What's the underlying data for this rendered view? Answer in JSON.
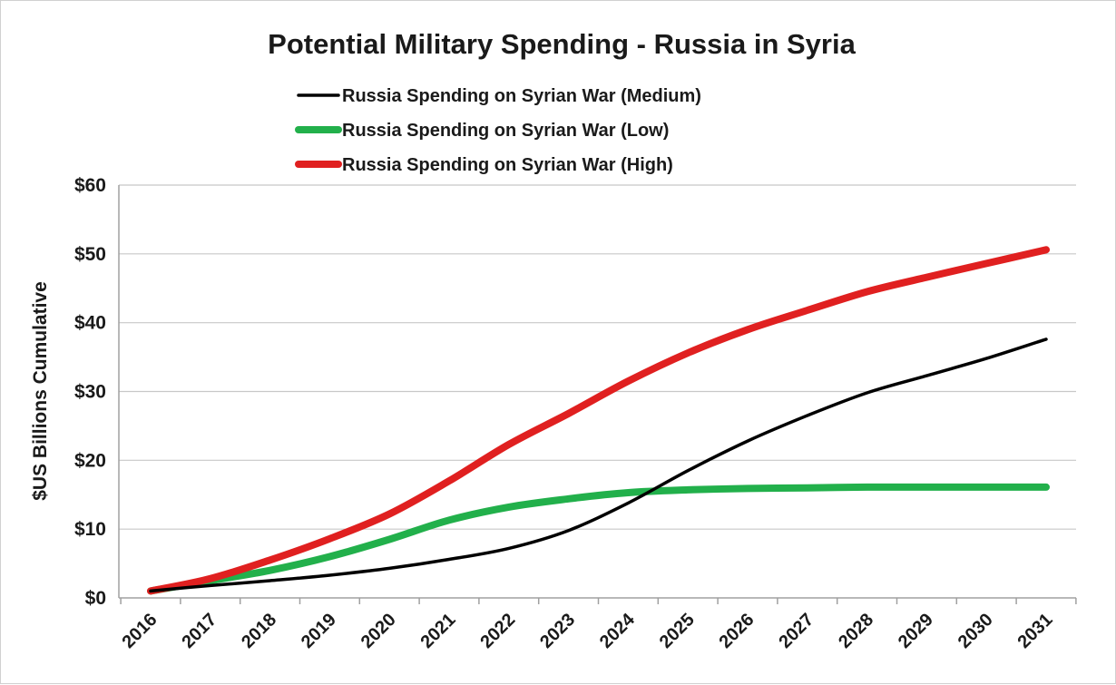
{
  "chart_data": {
    "type": "line",
    "title": "Potential Military Spending - Russia in Syria",
    "xlabel": "",
    "ylabel": "$US Billions Cumulative",
    "x": [
      "2016",
      "2017",
      "2018",
      "2019",
      "2020",
      "2021",
      "2022",
      "2023",
      "2024",
      "2025",
      "2026",
      "2027",
      "2028",
      "2029",
      "2030",
      "2031"
    ],
    "ylim": [
      0,
      60
    ],
    "yticks": [
      0,
      10,
      20,
      30,
      40,
      50,
      60
    ],
    "ytick_labels": [
      "$0",
      "$10",
      "$20",
      "$30",
      "$40",
      "$50",
      "$60"
    ],
    "grid": "horizontal",
    "legend_position": "top-center",
    "series": [
      {
        "name": "Russia Spending on Syrian War (Medium)",
        "color": "#000000",
        "values": [
          1.0,
          1.8,
          2.5,
          3.3,
          4.3,
          5.6,
          7.2,
          9.8,
          13.8,
          18.5,
          22.8,
          26.5,
          29.8,
          32.3,
          34.8,
          37.6
        ]
      },
      {
        "name": "Russia Spending on Syrian War (Low)",
        "color": "#22b04b",
        "values": [
          1.0,
          2.5,
          4.0,
          6.0,
          8.5,
          11.3,
          13.2,
          14.4,
          15.3,
          15.7,
          15.9,
          16.0,
          16.1,
          16.1,
          16.1,
          16.1
        ]
      },
      {
        "name": "Russia Spending on Syrian War (High)",
        "color": "#e02020",
        "values": [
          1.0,
          2.8,
          5.5,
          8.6,
          12.2,
          17.0,
          22.3,
          26.8,
          31.5,
          35.6,
          39.0,
          41.8,
          44.5,
          46.6,
          48.6,
          50.6
        ]
      }
    ]
  }
}
